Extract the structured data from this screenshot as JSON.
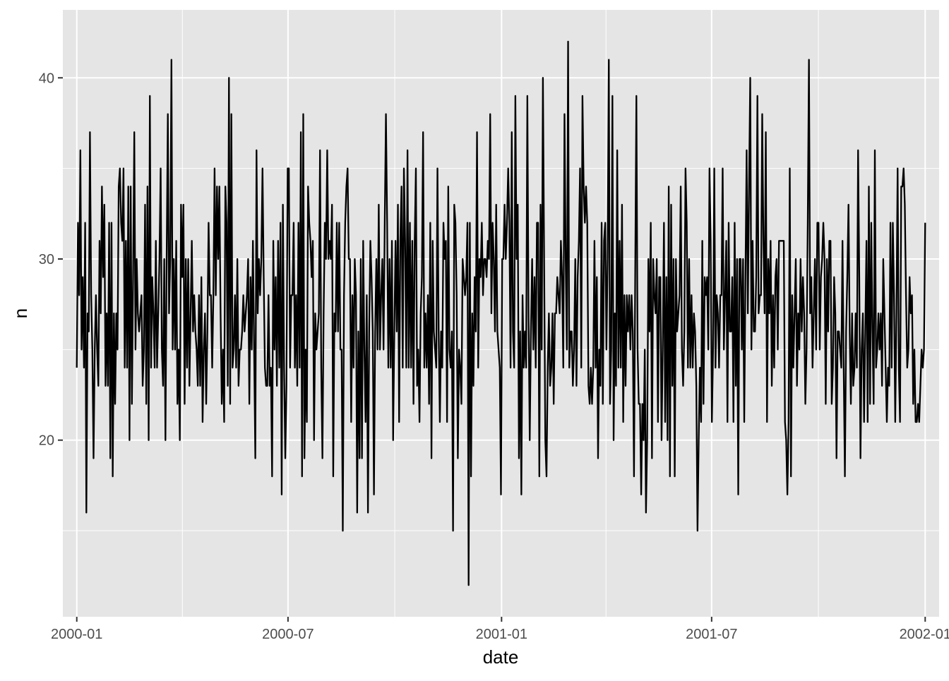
{
  "chart_data": {
    "type": "line",
    "title": "",
    "xlabel": "date",
    "ylabel": "n",
    "x_range": [
      "2000-01-01",
      "2002-01-01"
    ],
    "xlim": [
      "1999-12-20",
      "2002-01-13"
    ],
    "ylim": [
      10.25,
      43.75
    ],
    "x_ticks": [
      {
        "date": "2000-01-01",
        "label": "2000-01"
      },
      {
        "date": "2000-07-01",
        "label": "2000-07"
      },
      {
        "date": "2001-01-01",
        "label": "2001-01"
      },
      {
        "date": "2001-07-01",
        "label": "2001-07"
      },
      {
        "date": "2002-01-01",
        "label": "2002-01"
      }
    ],
    "x_minor_breaks": [
      "2000-04-01",
      "2000-10-01",
      "2001-04-01",
      "2001-10-01"
    ],
    "y_ticks": [
      20,
      30,
      40
    ],
    "y_minor_breaks": [
      15,
      25,
      35
    ],
    "grid": true,
    "legend": "none",
    "colors": {
      "panel": "#e5e5e5",
      "grid": "#ffffff",
      "line": "#000000"
    },
    "series": [
      {
        "values": [
          24,
          32,
          28,
          36,
          25,
          29,
          24,
          32,
          16,
          27,
          26,
          37,
          28,
          25,
          19,
          25,
          28,
          25,
          23,
          31,
          27,
          34,
          29,
          33,
          23,
          27,
          23,
          32,
          19,
          32,
          18,
          27,
          22,
          27,
          25,
          34,
          35,
          32,
          31,
          35,
          24,
          31,
          24,
          34,
          20,
          34,
          22,
          29,
          37,
          25,
          30,
          27,
          26,
          27,
          28,
          23,
          25,
          33,
          22,
          34,
          20,
          39,
          24,
          29,
          27,
          24,
          31,
          24,
          27,
          30,
          35,
          25,
          23,
          30,
          20,
          30,
          38,
          27,
          30,
          41,
          25,
          30,
          25,
          31,
          22,
          25,
          20,
          33,
          29,
          33,
          22,
          30,
          24,
          30,
          23,
          27,
          31,
          26,
          28,
          26,
          25,
          23,
          28,
          23,
          29,
          21,
          25,
          27,
          22,
          26,
          32,
          28,
          28,
          24,
          28,
          35,
          28,
          34,
          30,
          34,
          27,
          22,
          25,
          21,
          34,
          32,
          23,
          40,
          22,
          38,
          24,
          25,
          28,
          24,
          30,
          23,
          25,
          25,
          26,
          28,
          26,
          27,
          28,
          30,
          22,
          29,
          25,
          31,
          25,
          19,
          36,
          27,
          30,
          28,
          30,
          35,
          29,
          24,
          23,
          23,
          28,
          23,
          24,
          18,
          31,
          25,
          29,
          23,
          31,
          24,
          32,
          17,
          33,
          24,
          19,
          23,
          35,
          35,
          24,
          28,
          28,
          32,
          24,
          28,
          23,
          32,
          24,
          37,
          18,
          38,
          19,
          25,
          21,
          34,
          32,
          31,
          29,
          31,
          20,
          27,
          25,
          26,
          27,
          36,
          24,
          19,
          27,
          32,
          30,
          36,
          30,
          31,
          30,
          33,
          18,
          27,
          26,
          32,
          26,
          32,
          25,
          25,
          15,
          28,
          32,
          34,
          35,
          30,
          30,
          21,
          28,
          24,
          30,
          28,
          16,
          26,
          19,
          30,
          19,
          31,
          25,
          21,
          28,
          16,
          26,
          31,
          29,
          26,
          17,
          26,
          30,
          25,
          33,
          25,
          28,
          30,
          25,
          32,
          38,
          32,
          24,
          30,
          24,
          31,
          20,
          26,
          31,
          26,
          33,
          21,
          31,
          34,
          24,
          35,
          31,
          24,
          36,
          24,
          32,
          24,
          31,
          22,
          31,
          35,
          23,
          25,
          21,
          27,
          29,
          37,
          24,
          27,
          24,
          28,
          22,
          32,
          19,
          31,
          26,
          25,
          24,
          35,
          26,
          21,
          26,
          24,
          32,
          30,
          31,
          21,
          34,
          25,
          24,
          26,
          15,
          33,
          32,
          28,
          19,
          25,
          24,
          22,
          30,
          29,
          28,
          29,
          32,
          12,
          32,
          18,
          27,
          23,
          29,
          26,
          37,
          24,
          30,
          29,
          32,
          28,
          30,
          30,
          29,
          31,
          30,
          38,
          27,
          32,
          30,
          26,
          33,
          26,
          25,
          24,
          17,
          30,
          30,
          33,
          30,
          32,
          35,
          32,
          24,
          37,
          26,
          24,
          39,
          30,
          33,
          19,
          26,
          17,
          28,
          24,
          26,
          24,
          39,
          27,
          20,
          26,
          30,
          25,
          29,
          24,
          32,
          32,
          18,
          33,
          25,
          40,
          30,
          20,
          18,
          24,
          27,
          23,
          24,
          27,
          22,
          27,
          27,
          29,
          28,
          27,
          31,
          29,
          24,
          38,
          30,
          25,
          42,
          24,
          26,
          26,
          23,
          25,
          30,
          23,
          29,
          31,
          35,
          24,
          39,
          34,
          32,
          34,
          32,
          23,
          22,
          24,
          22,
          24,
          31,
          24,
          29,
          19,
          25,
          23,
          32,
          22,
          31,
          32,
          25,
          30,
          41,
          22,
          25,
          39,
          20,
          27,
          23,
          36,
          24,
          31,
          24,
          33,
          21,
          28,
          23,
          28,
          26,
          28,
          25,
          28,
          26,
          18,
          29,
          39,
          25,
          22,
          22,
          17,
          22,
          20,
          25,
          16,
          20,
          30,
          26,
          32,
          19,
          30,
          28,
          27,
          30,
          21,
          29,
          29,
          20,
          25,
          32,
          21,
          29,
          20,
          34,
          18,
          33,
          23,
          30,
          18,
          30,
          26,
          27,
          28,
          34,
          25,
          23,
          26,
          35,
          32,
          24,
          30,
          24,
          28,
          24,
          27,
          26,
          23,
          15,
          20,
          24,
          21,
          31,
          22,
          29,
          28,
          29,
          25,
          35,
          31,
          21,
          25,
          35,
          24,
          28,
          27,
          24,
          28,
          28,
          35,
          25,
          28,
          31,
          21,
          32,
          26,
          26,
          29,
          21,
          32,
          23,
          30,
          17,
          30,
          30,
          25,
          30,
          21,
          29,
          36,
          27,
          34,
          40,
          25,
          31,
          26,
          26,
          29,
          39,
          27,
          28,
          28,
          38,
          31,
          27,
          37,
          21,
          30,
          27,
          31,
          23,
          28,
          24,
          29,
          30,
          25,
          31,
          31,
          31,
          31,
          31,
          21,
          20,
          17,
          21,
          35,
          18,
          28,
          24,
          27,
          30,
          23,
          27,
          25,
          30,
          26,
          29,
          27,
          22,
          25,
          32,
          41,
          27,
          29,
          24,
          27,
          30,
          25,
          32,
          32,
          25,
          29,
          30,
          32,
          30,
          22,
          30,
          26,
          31,
          31,
          22,
          24,
          29,
          27,
          19,
          26,
          26,
          25,
          24,
          31,
          24,
          18,
          26,
          29,
          33,
          26,
          22,
          27,
          23,
          24,
          27,
          24,
          36,
          29,
          19,
          25,
          27,
          21,
          26,
          31,
          21,
          34,
          22,
          32,
          26,
          22,
          36,
          24,
          25,
          27,
          25,
          27,
          23,
          30,
          27,
          24,
          21,
          24,
          23,
          32,
          24,
          32,
          28,
          21,
          27,
          35,
          24,
          21,
          34,
          34,
          35,
          33,
          28,
          24,
          25,
          29,
          27,
          28,
          22,
          25,
          21,
          21,
          22,
          21,
          23,
          25,
          24,
          25,
          32
        ]
      }
    ]
  }
}
